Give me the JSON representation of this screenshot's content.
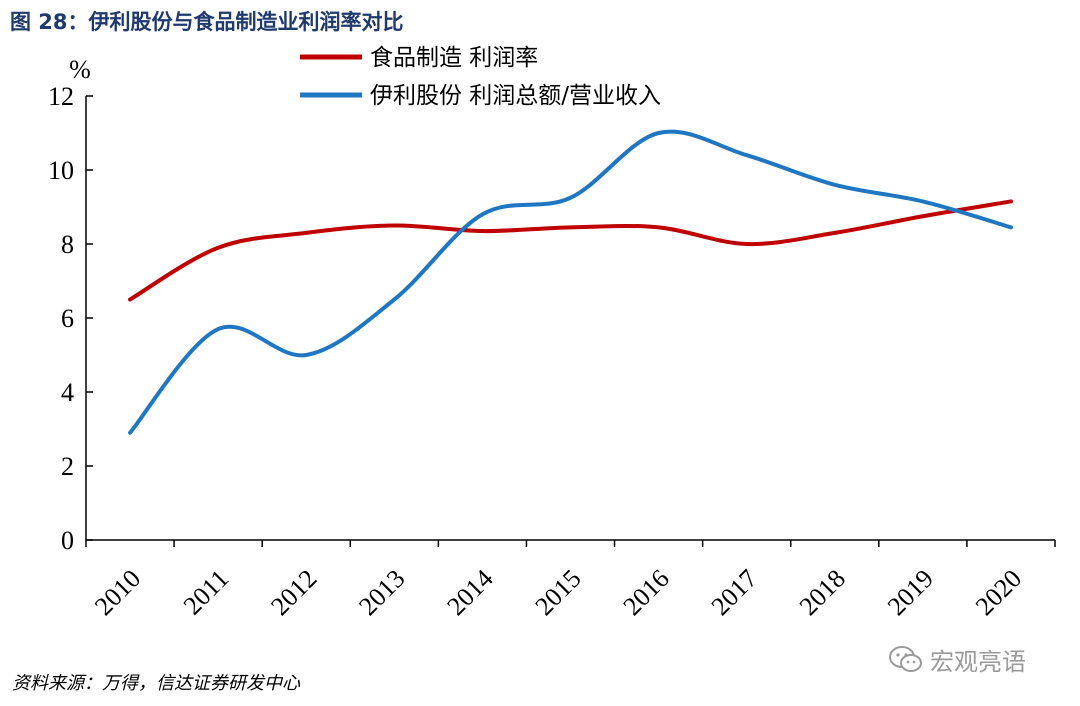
{
  "figure_title": "图 28：伊利股份与食品制造业利润率对比",
  "source_note": "资料来源：万得，信达证券研发中心",
  "watermark": "宏观亮语",
  "colors": {
    "series_food": "#c00000",
    "series_yili": "#1f77c4",
    "title": "#1f3a6e"
  },
  "chart_data": {
    "type": "line",
    "title": "",
    "ylabel": "%",
    "xlabel": "",
    "ylim": [
      0,
      12
    ],
    "yticks": [
      "0",
      "2",
      "4",
      "6",
      "8",
      "10",
      "12"
    ],
    "categories": [
      "2010",
      "2011",
      "2012",
      "2013",
      "2014",
      "2015",
      "2016",
      "2017",
      "2018",
      "2019",
      "2020"
    ],
    "legend_position": "top",
    "series": [
      {
        "name": "食品制造 利润率",
        "color": "#c00000",
        "values": [
          6.5,
          7.9,
          8.3,
          8.5,
          8.35,
          8.45,
          8.45,
          8.0,
          8.3,
          8.75,
          9.15
        ]
      },
      {
        "name": "伊利股份 利润总额/营业收入",
        "color": "#1f77c4",
        "values": [
          2.9,
          5.7,
          5.0,
          6.5,
          8.8,
          9.25,
          11.0,
          10.4,
          9.6,
          9.15,
          8.45
        ]
      }
    ]
  }
}
